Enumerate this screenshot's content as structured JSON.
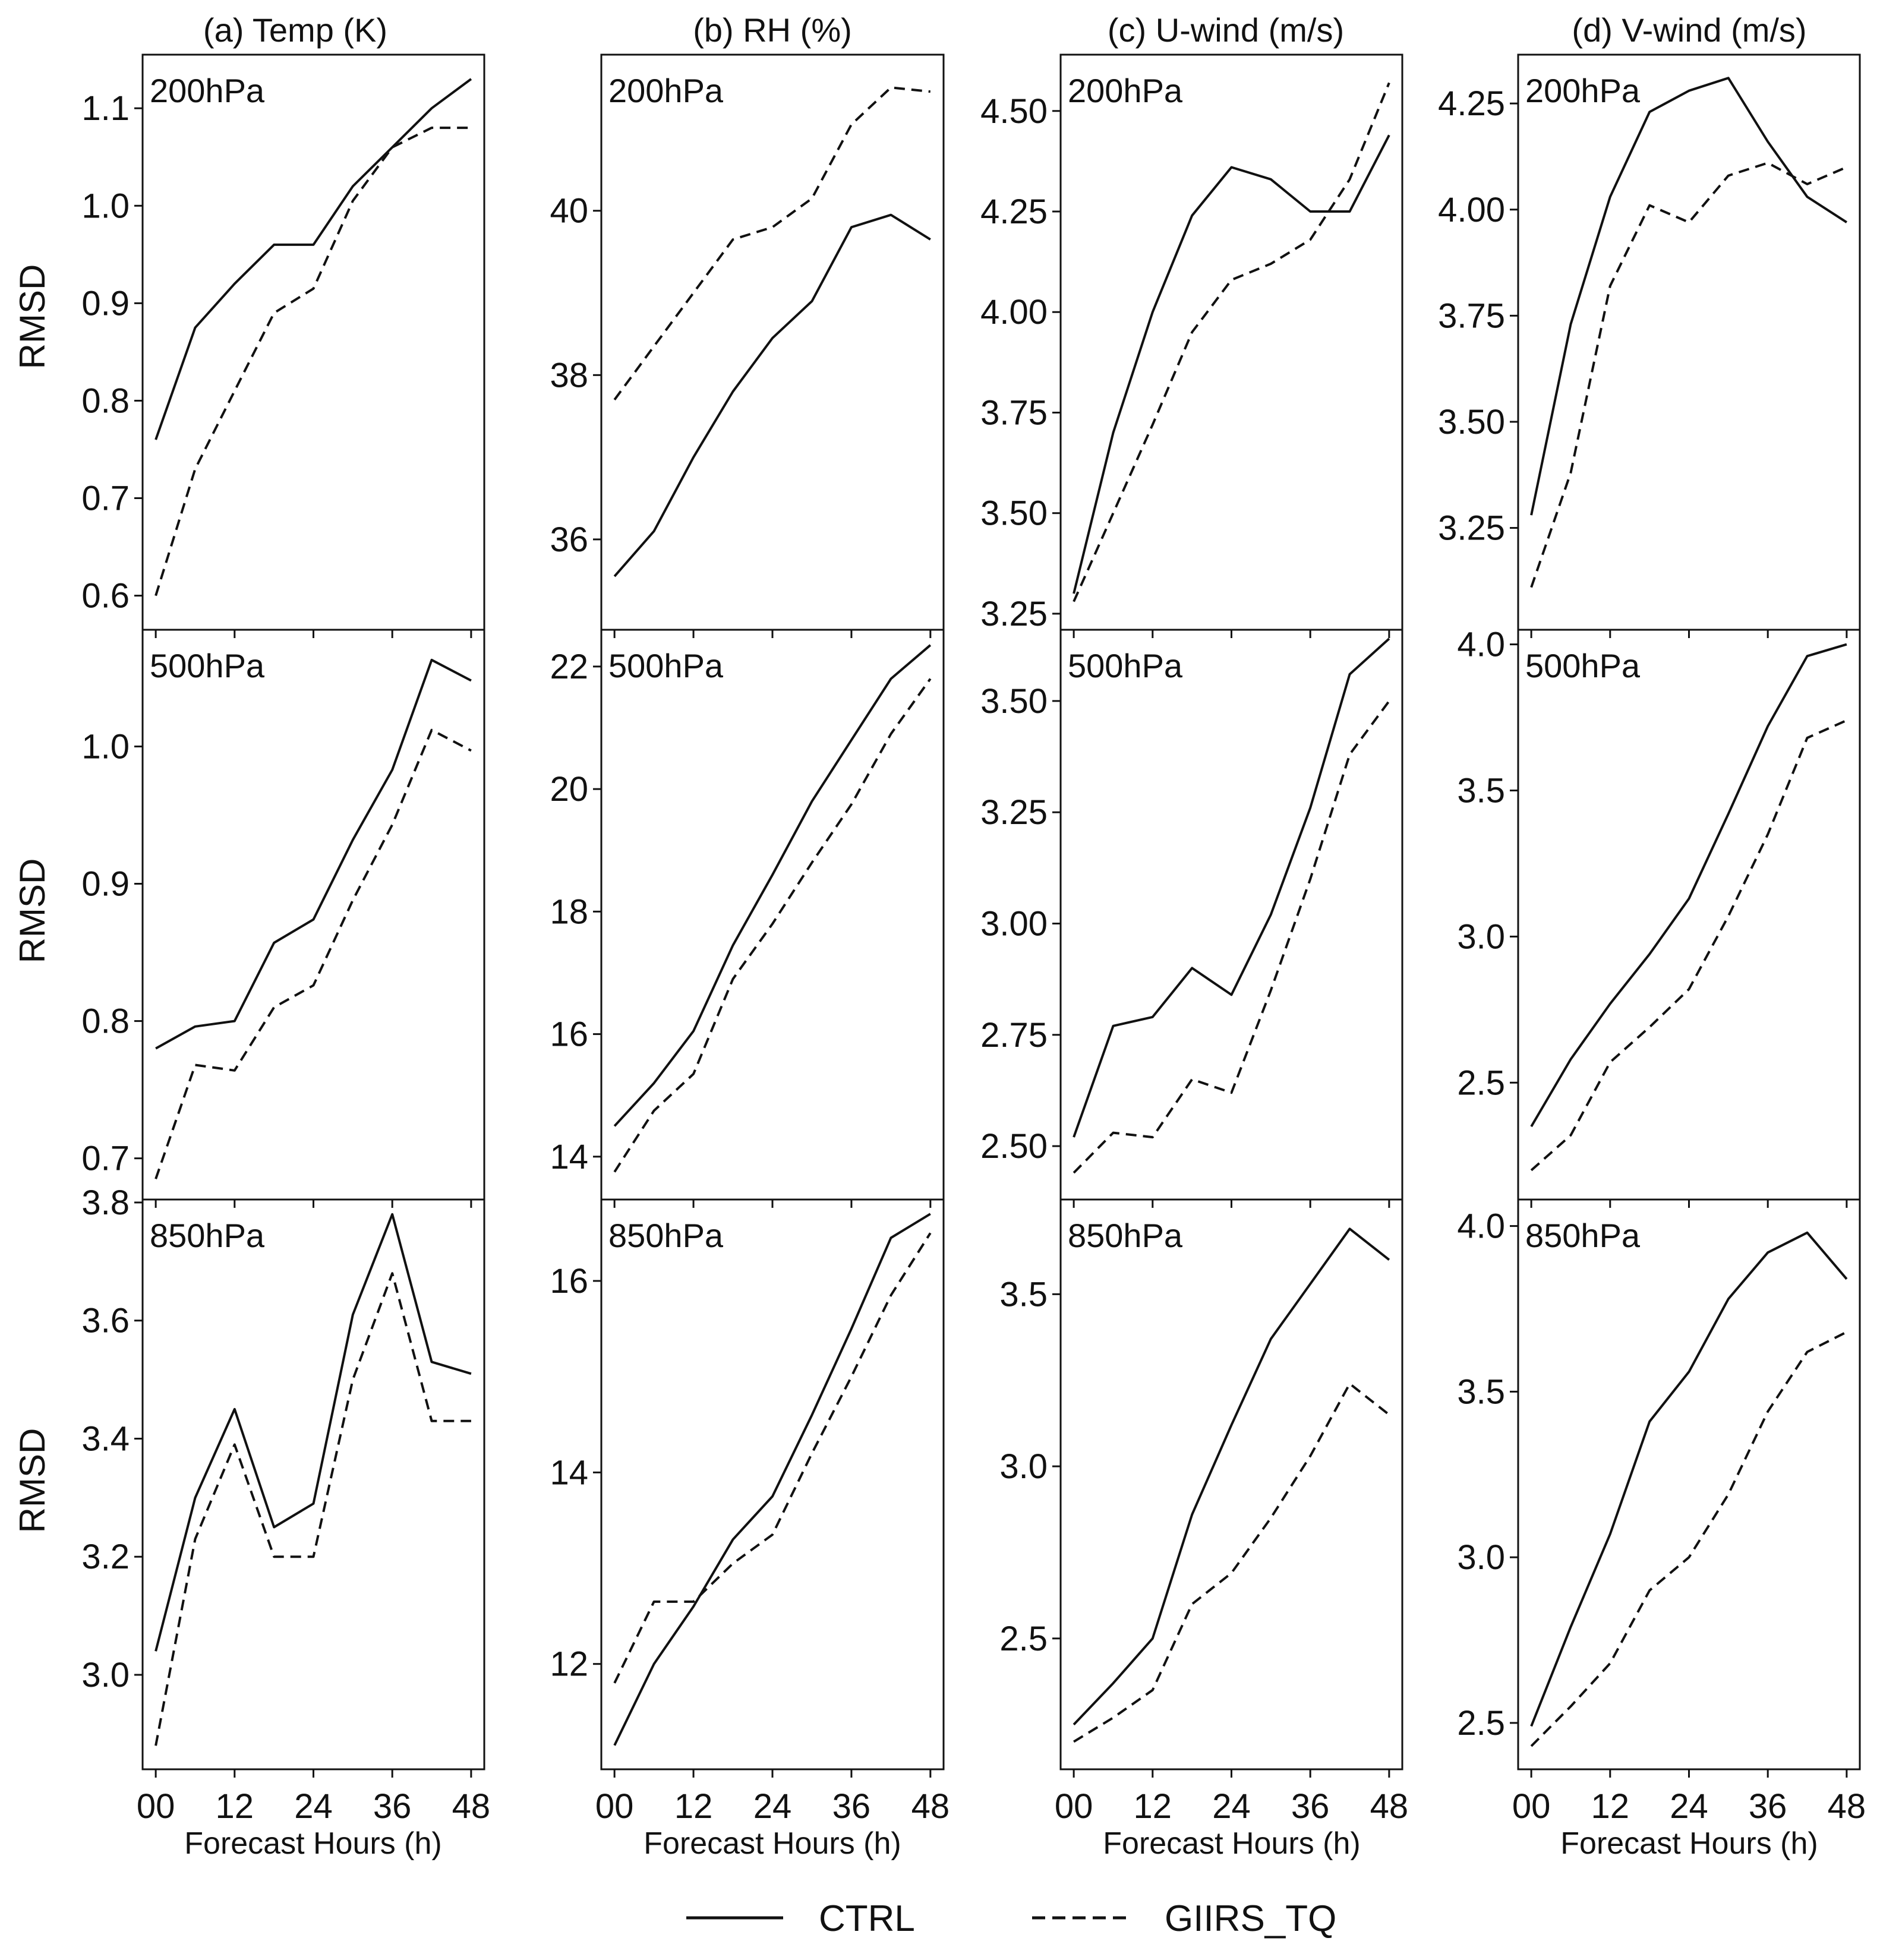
{
  "figure": {
    "y_label": "RMSD",
    "x_label": "Forecast Hours (h)",
    "legend": [
      {
        "name": "CTRL",
        "style": "solid"
      },
      {
        "name": "GIIRS_TQ",
        "style": "dashed"
      }
    ],
    "line_color": "#111111"
  },
  "chart_data": [
    {
      "type": "line",
      "column": "a",
      "title": "(a) Temp (K)",
      "level": "200hPa",
      "xlabel": "Forecast Hours (h)",
      "ylabel": "RMSD",
      "x": [
        0,
        6,
        12,
        18,
        24,
        30,
        36,
        42,
        48
      ],
      "xticks": [
        "00",
        "12",
        "24",
        "36",
        "48"
      ],
      "xlim": [
        -2,
        50
      ],
      "yticks": [
        "0.6",
        "0.7",
        "0.8",
        "0.9",
        "1.0",
        "1.1"
      ],
      "ylim": [
        0.565,
        1.155
      ],
      "series": [
        {
          "name": "CTRL",
          "values": [
            0.76,
            0.875,
            0.92,
            0.96,
            0.96,
            1.02,
            1.06,
            1.1,
            1.13
          ]
        },
        {
          "name": "GIIRS_TQ",
          "values": [
            0.6,
            0.73,
            0.81,
            0.89,
            0.915,
            1.005,
            1.06,
            1.08,
            1.08
          ]
        }
      ]
    },
    {
      "type": "line",
      "column": "b",
      "title": "(b) RH (%)",
      "level": "200hPa",
      "xlabel": "Forecast Hours (h)",
      "ylabel": "RMSD",
      "x": [
        0,
        6,
        12,
        18,
        24,
        30,
        36,
        42,
        48
      ],
      "xticks": [
        "00",
        "12",
        "24",
        "36",
        "48"
      ],
      "xlim": [
        -2,
        50
      ],
      "yticks": [
        "36",
        "38",
        "40"
      ],
      "ylim": [
        34.9,
        41.9
      ],
      "series": [
        {
          "name": "CTRL",
          "values": [
            35.55,
            36.1,
            37.0,
            37.8,
            38.45,
            38.9,
            39.8,
            39.95,
            39.65
          ]
        },
        {
          "name": "GIIRS_TQ",
          "values": [
            37.7,
            38.35,
            39.0,
            39.65,
            39.8,
            40.15,
            41.05,
            41.5,
            41.45
          ]
        }
      ]
    },
    {
      "type": "line",
      "column": "c",
      "title": "(c) U-wind (m/s)",
      "level": "200hPa",
      "xlabel": "Forecast Hours (h)",
      "ylabel": "RMSD",
      "x": [
        0,
        6,
        12,
        18,
        24,
        30,
        36,
        42,
        48
      ],
      "xticks": [
        "00",
        "12",
        "24",
        "36",
        "48"
      ],
      "xlim": [
        -2,
        50
      ],
      "yticks": [
        "3.25",
        "3.50",
        "3.75",
        "4.00",
        "4.25",
        "4.50"
      ],
      "ylim": [
        3.21,
        4.64
      ],
      "series": [
        {
          "name": "CTRL",
          "values": [
            3.3,
            3.7,
            4.0,
            4.24,
            4.36,
            4.33,
            4.25,
            4.25,
            4.44
          ]
        },
        {
          "name": "GIIRS_TQ",
          "values": [
            3.28,
            3.5,
            3.72,
            3.95,
            4.08,
            4.12,
            4.18,
            4.33,
            4.57
          ]
        }
      ]
    },
    {
      "type": "line",
      "column": "d",
      "title": "(d) V-wind (m/s)",
      "level": "200hPa",
      "xlabel": "Forecast Hours (h)",
      "ylabel": "RMSD",
      "x": [
        0,
        6,
        12,
        18,
        24,
        30,
        36,
        42,
        48
      ],
      "xticks": [
        "00",
        "12",
        "24",
        "36",
        "48"
      ],
      "xlim": [
        -2,
        50
      ],
      "yticks": [
        "3.25",
        "3.50",
        "3.75",
        "4.00",
        "4.25"
      ],
      "ylim": [
        3.01,
        4.365
      ],
      "series": [
        {
          "name": "CTRL",
          "values": [
            3.28,
            3.73,
            4.03,
            4.23,
            4.28,
            4.31,
            4.16,
            4.03,
            3.97
          ]
        },
        {
          "name": "GIIRS_TQ",
          "values": [
            3.11,
            3.38,
            3.82,
            4.01,
            3.97,
            4.08,
            4.11,
            4.06,
            4.1
          ]
        }
      ]
    },
    {
      "type": "line",
      "column": "a",
      "title": "",
      "level": "500hPa",
      "xlabel": "Forecast Hours (h)",
      "ylabel": "RMSD",
      "x": [
        0,
        6,
        12,
        18,
        24,
        30,
        36,
        42,
        48
      ],
      "xticks": [
        "00",
        "12",
        "24",
        "36",
        "48"
      ],
      "xlim": [
        -2,
        50
      ],
      "yticks": [
        "0.7",
        "0.8",
        "0.9",
        "1.0"
      ],
      "ylim": [
        0.67,
        1.085
      ],
      "series": [
        {
          "name": "CTRL",
          "values": [
            0.78,
            0.796,
            0.8,
            0.857,
            0.874,
            0.932,
            0.983,
            1.063,
            1.048
          ]
        },
        {
          "name": "GIIRS_TQ",
          "values": [
            0.685,
            0.768,
            0.764,
            0.81,
            0.826,
            0.888,
            0.943,
            1.012,
            0.997
          ]
        }
      ]
    },
    {
      "type": "line",
      "column": "b",
      "title": "",
      "level": "500hPa",
      "xlabel": "Forecast Hours (h)",
      "ylabel": "RMSD",
      "x": [
        0,
        6,
        12,
        18,
        24,
        30,
        36,
        42,
        48
      ],
      "xticks": [
        "00",
        "12",
        "24",
        "36",
        "48"
      ],
      "xlim": [
        -2,
        50
      ],
      "yticks": [
        "14",
        "16",
        "18",
        "20",
        "22"
      ],
      "ylim": [
        13.3,
        22.6
      ],
      "series": [
        {
          "name": "CTRL",
          "values": [
            14.5,
            15.2,
            16.05,
            17.45,
            18.6,
            19.8,
            20.8,
            21.8,
            22.35
          ]
        },
        {
          "name": "GIIRS_TQ",
          "values": [
            13.75,
            14.75,
            15.35,
            16.9,
            17.8,
            18.8,
            19.75,
            20.9,
            21.8
          ]
        }
      ]
    },
    {
      "type": "line",
      "column": "c",
      "title": "",
      "level": "500hPa",
      "xlabel": "Forecast Hours (h)",
      "ylabel": "RMSD",
      "x": [
        0,
        6,
        12,
        18,
        24,
        30,
        36,
        42,
        48
      ],
      "xticks": [
        "00",
        "12",
        "24",
        "36",
        "48"
      ],
      "xlim": [
        -2,
        50
      ],
      "yticks": [
        "2.50",
        "2.75",
        "3.00",
        "3.25",
        "3.50"
      ],
      "ylim": [
        2.38,
        3.66
      ],
      "series": [
        {
          "name": "CTRL",
          "values": [
            2.52,
            2.77,
            2.79,
            2.9,
            2.84,
            3.02,
            3.26,
            3.56,
            3.64
          ]
        },
        {
          "name": "GIIRS_TQ",
          "values": [
            2.44,
            2.53,
            2.52,
            2.65,
            2.62,
            2.85,
            3.1,
            3.38,
            3.5
          ]
        }
      ]
    },
    {
      "type": "line",
      "column": "d",
      "title": "",
      "level": "500hPa",
      "xlabel": "Forecast Hours (h)",
      "ylabel": "RMSD",
      "x": [
        0,
        6,
        12,
        18,
        24,
        30,
        36,
        42,
        48
      ],
      "xticks": [
        "00",
        "12",
        "24",
        "36",
        "48"
      ],
      "xlim": [
        -2,
        50
      ],
      "yticks": [
        "2.5",
        "3.0",
        "3.5",
        "4.0"
      ],
      "ylim": [
        2.1,
        4.05
      ],
      "series": [
        {
          "name": "CTRL",
          "values": [
            2.35,
            2.58,
            2.77,
            2.94,
            3.13,
            3.42,
            3.72,
            3.96,
            4.0
          ]
        },
        {
          "name": "GIIRS_TQ",
          "values": [
            2.2,
            2.32,
            2.57,
            2.69,
            2.82,
            3.07,
            3.35,
            3.68,
            3.74
          ]
        }
      ]
    },
    {
      "type": "line",
      "column": "a",
      "title": "",
      "level": "850hPa",
      "xlabel": "Forecast Hours (h)",
      "ylabel": "RMSD",
      "x": [
        0,
        6,
        12,
        18,
        24,
        30,
        36,
        42,
        48
      ],
      "xticks": [
        "00",
        "12",
        "24",
        "36",
        "48"
      ],
      "xlim": [
        -2,
        50
      ],
      "yticks": [
        "3.0",
        "3.2",
        "3.4",
        "3.6",
        "3.8"
      ],
      "ylim": [
        2.84,
        3.805
      ],
      "series": [
        {
          "name": "CTRL",
          "values": [
            3.04,
            3.3,
            3.45,
            3.25,
            3.29,
            3.61,
            3.78,
            3.53,
            3.51
          ]
        },
        {
          "name": "GIIRS_TQ",
          "values": [
            2.88,
            3.23,
            3.39,
            3.2,
            3.2,
            3.5,
            3.68,
            3.43,
            3.43
          ]
        }
      ]
    },
    {
      "type": "line",
      "column": "b",
      "title": "",
      "level": "850hPa",
      "xlabel": "Forecast Hours (h)",
      "ylabel": "RMSD",
      "x": [
        0,
        6,
        12,
        18,
        24,
        30,
        36,
        42,
        48
      ],
      "xticks": [
        "00",
        "12",
        "24",
        "36",
        "48"
      ],
      "xlim": [
        -2,
        50
      ],
      "yticks": [
        "12",
        "14",
        "16"
      ],
      "ylim": [
        10.9,
        16.85
      ],
      "series": [
        {
          "name": "CTRL",
          "values": [
            11.15,
            12.0,
            12.6,
            13.3,
            13.75,
            14.6,
            15.5,
            16.45,
            16.7
          ]
        },
        {
          "name": "GIIRS_TQ",
          "values": [
            11.8,
            12.65,
            12.65,
            13.05,
            13.35,
            14.2,
            15.0,
            15.85,
            16.5
          ]
        }
      ]
    },
    {
      "type": "line",
      "column": "c",
      "title": "",
      "level": "850hPa",
      "xlabel": "Forecast Hours (h)",
      "ylabel": "RMSD",
      "x": [
        0,
        6,
        12,
        18,
        24,
        30,
        36,
        42,
        48
      ],
      "xticks": [
        "00",
        "12",
        "24",
        "36",
        "48"
      ],
      "xlim": [
        -2,
        50
      ],
      "yticks": [
        "2.5",
        "3.0",
        "3.5"
      ],
      "ylim": [
        2.12,
        3.775
      ],
      "series": [
        {
          "name": "CTRL",
          "values": [
            2.25,
            2.37,
            2.5,
            2.86,
            3.12,
            3.37,
            3.53,
            3.69,
            3.6
          ]
        },
        {
          "name": "GIIRS_TQ",
          "values": [
            2.2,
            2.27,
            2.35,
            2.6,
            2.69,
            2.85,
            3.03,
            3.24,
            3.15
          ]
        }
      ]
    },
    {
      "type": "line",
      "column": "d",
      "title": "",
      "level": "850hPa",
      "xlabel": "Forecast Hours (h)",
      "ylabel": "RMSD",
      "x": [
        0,
        6,
        12,
        18,
        24,
        30,
        36,
        42,
        48
      ],
      "xticks": [
        "00",
        "12",
        "24",
        "36",
        "48"
      ],
      "xlim": [
        -2,
        50
      ],
      "yticks": [
        "2.5",
        "3.0",
        "3.5",
        "4.0"
      ],
      "ylim": [
        2.36,
        4.08
      ],
      "series": [
        {
          "name": "CTRL",
          "values": [
            2.49,
            2.79,
            3.07,
            3.41,
            3.56,
            3.78,
            3.92,
            3.98,
            3.84
          ]
        },
        {
          "name": "GIIRS_TQ",
          "values": [
            2.43,
            2.55,
            2.68,
            2.9,
            3.0,
            3.19,
            3.44,
            3.62,
            3.68
          ]
        }
      ]
    }
  ]
}
